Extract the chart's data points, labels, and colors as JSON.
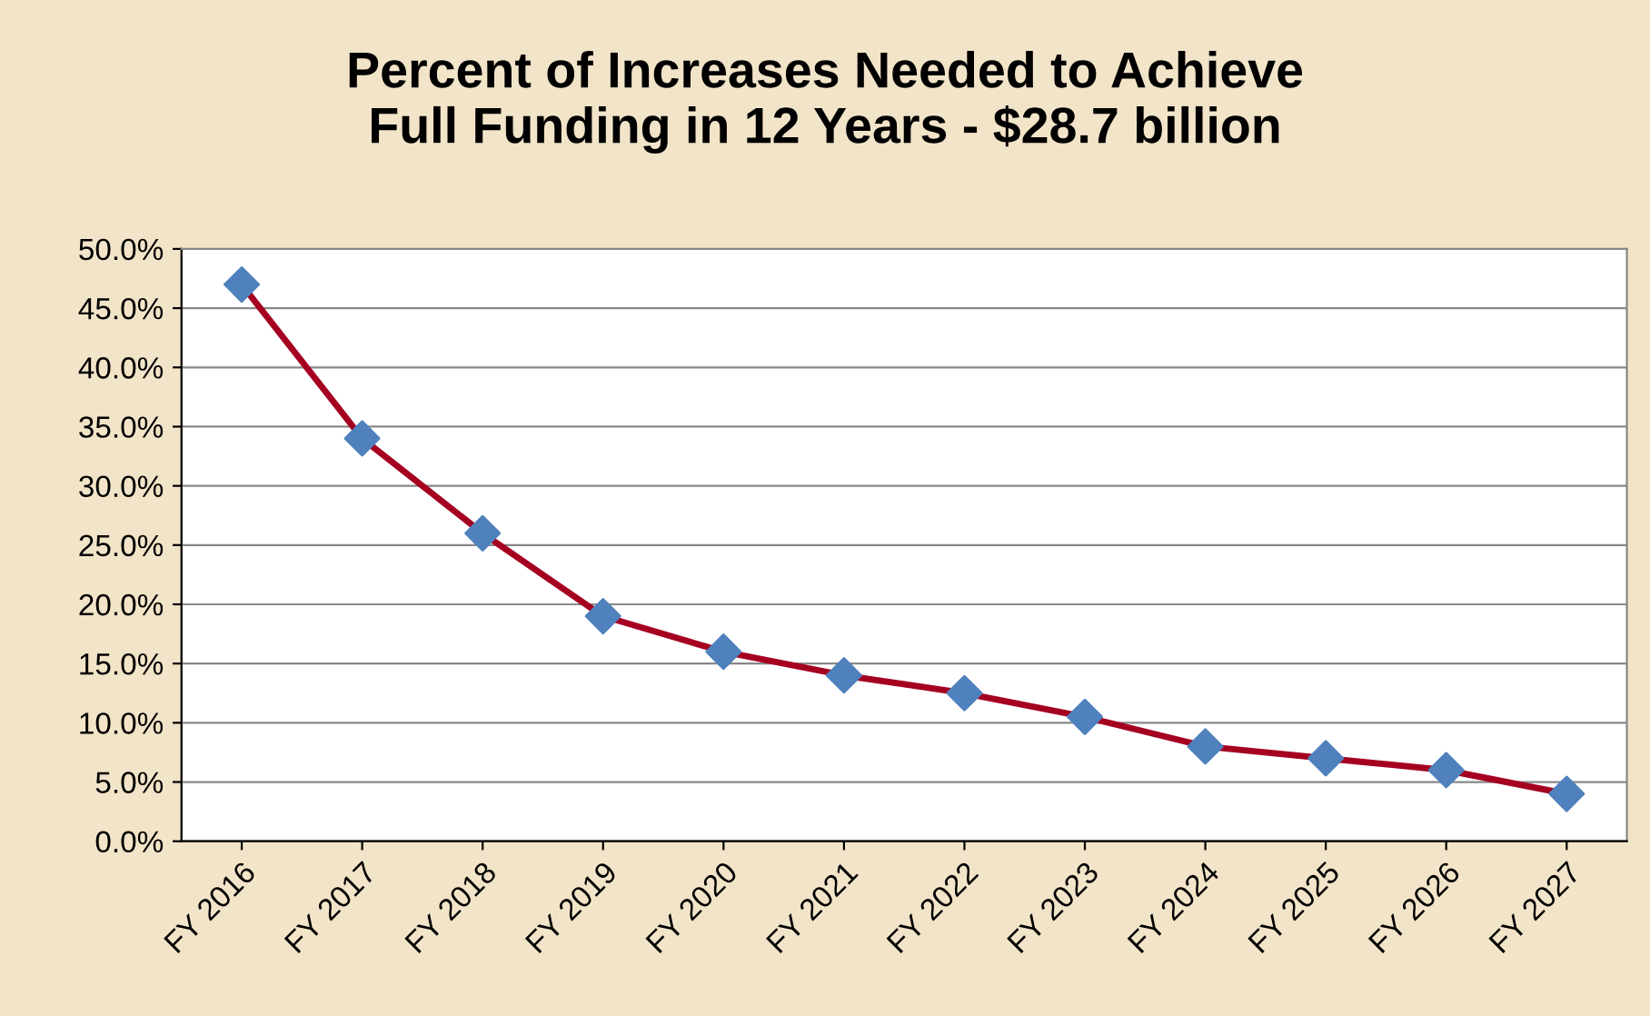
{
  "chart_data": {
    "type": "line",
    "title": "Percent of Increases Needed to Achieve\nFull Funding in 12 Years - $28.7 billion",
    "categories": [
      "FY 2016",
      "FY 2017",
      "FY 2018",
      "FY 2019",
      "FY 2020",
      "FY 2021",
      "FY 2022",
      "FY 2023",
      "FY 2024",
      "FY 2025",
      "FY 2026",
      "FY 2027"
    ],
    "series": [
      {
        "color": "#a50021",
        "colors": [
          "#4f81bd",
          "#4f81bd",
          "#4f81bd",
          "#4f81bd",
          "#4f81bd",
          "#4f81bd",
          "#4f81bd",
          "#4f81bd",
          "#4f81bd",
          "#4f81bd",
          "#4f81bd",
          "#4f81bd"
        ],
        "values": [
          47,
          34,
          26,
          19,
          16,
          14,
          12.5,
          10.5,
          8,
          7,
          6,
          4
        ]
      }
    ],
    "ylim": [
      0,
      50
    ],
    "yticks": [
      {
        "value": 0,
        "label": "0.0%"
      },
      {
        "value": 5,
        "label": "5.0%"
      },
      {
        "value": 10,
        "label": "10.0%"
      },
      {
        "value": 15,
        "label": "15.0%"
      },
      {
        "value": 20,
        "label": "20.0%"
      },
      {
        "value": 25,
        "label": "25.0%"
      },
      {
        "value": 30,
        "label": "30.0%"
      },
      {
        "value": 35,
        "label": "35.0%"
      },
      {
        "value": 40,
        "label": "40.0%"
      },
      {
        "value": 45,
        "label": "45.0%"
      },
      {
        "value": 50,
        "label": "50.0%"
      }
    ],
    "grid": "y",
    "marker": "diamond",
    "line_style": "solid",
    "legend": false
  }
}
